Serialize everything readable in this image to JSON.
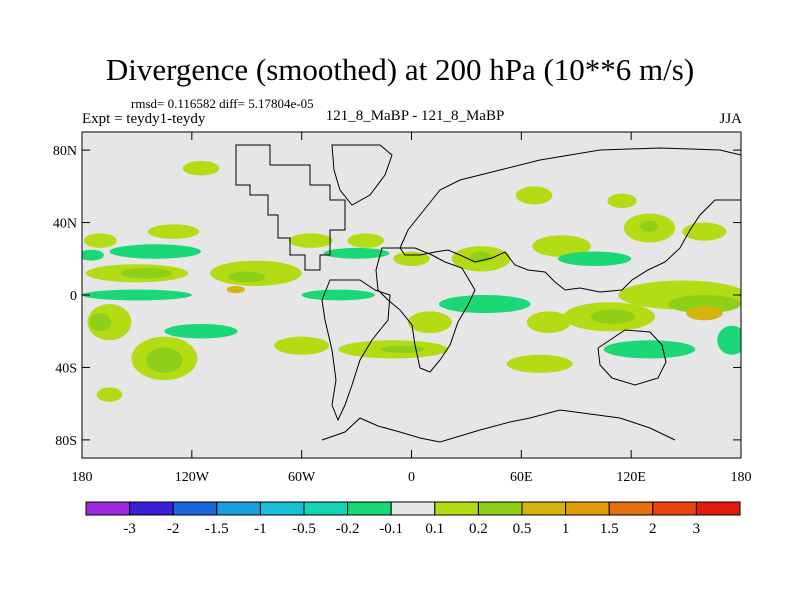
{
  "chart_data": {
    "type": "heatmap",
    "title": "Divergence (smoothed) at 200 hPa (10**6 m/s)",
    "stats_text": "rmsd= 0.116582 diff= 5.17804e-05",
    "left_label": "Expt = teydy1-teydy",
    "center_label": "121_8_MaBP - 121_8_MaBP",
    "right_label": "JJA",
    "xlim": [
      -180,
      180
    ],
    "ylim": [
      -90,
      90
    ],
    "x_ticks": [
      {
        "value": -180,
        "label": "180"
      },
      {
        "value": -120,
        "label": "120W"
      },
      {
        "value": -60,
        "label": "60W"
      },
      {
        "value": 0,
        "label": "0"
      },
      {
        "value": 60,
        "label": "60E"
      },
      {
        "value": 120,
        "label": "120E"
      },
      {
        "value": 180,
        "label": "180"
      }
    ],
    "y_ticks": [
      {
        "value": 80,
        "label": "80N"
      },
      {
        "value": 40,
        "label": "40N"
      },
      {
        "value": 0,
        "label": "0"
      },
      {
        "value": -40,
        "label": "40S"
      },
      {
        "value": -80,
        "label": "80S"
      }
    ],
    "colorbar": {
      "levels": [
        "-3",
        "-2",
        "-1.5",
        "-1",
        "-0.5",
        "-0.2",
        "-0.1",
        "0.1",
        "0.2",
        "0.5",
        "1",
        "1.5",
        "2",
        "3"
      ],
      "colors": [
        "#9b2bdc",
        "#3a1fd6",
        "#1a66dc",
        "#1a9edc",
        "#18bfd6",
        "#16d3b8",
        "#1ad878",
        "#e6e6e6",
        "#b4dc14",
        "#8ed018",
        "#d4b40e",
        "#e39a0a",
        "#e76e0c",
        "#e8440c",
        "#e51a0e"
      ]
    },
    "background_color": "#e6e6e6",
    "regions": [
      {
        "level": "0.1",
        "lon": -170,
        "lat": 30,
        "rx": 9,
        "ry": 4
      },
      {
        "level": "0.1",
        "lon": -130,
        "lat": 35,
        "rx": 14,
        "ry": 4
      },
      {
        "level": "-0.1",
        "lon": -175,
        "lat": 22,
        "rx": 7,
        "ry": 3
      },
      {
        "level": "0.1",
        "lon": -150,
        "lat": 12,
        "rx": 28,
        "ry": 5
      },
      {
        "level": "0.2",
        "lon": -145,
        "lat": 12,
        "rx": 14,
        "ry": 3
      },
      {
        "level": "-0.1",
        "lon": -140,
        "lat": 24,
        "rx": 25,
        "ry": 4
      },
      {
        "level": "0.1",
        "lon": -85,
        "lat": 12,
        "rx": 25,
        "ry": 7
      },
      {
        "level": "0.2",
        "lon": -90,
        "lat": 10,
        "rx": 10,
        "ry": 3
      },
      {
        "level": "0.5",
        "lon": -96,
        "lat": 3,
        "rx": 5,
        "ry": 2
      },
      {
        "level": "0.1",
        "lon": -55,
        "lat": 30,
        "rx": 12,
        "ry": 4
      },
      {
        "level": "0.1",
        "lon": -25,
        "lat": 30,
        "rx": 10,
        "ry": 4
      },
      {
        "level": "-0.1",
        "lon": -30,
        "lat": 23,
        "rx": 18,
        "ry": 3
      },
      {
        "level": "0.1",
        "lon": 0,
        "lat": 20,
        "rx": 10,
        "ry": 4
      },
      {
        "level": "0.1",
        "lon": 38,
        "lat": 20,
        "rx": 16,
        "ry": 7
      },
      {
        "level": "0.2",
        "lon": 38,
        "lat": 21,
        "rx": 6,
        "ry": 3
      },
      {
        "level": "0.1",
        "lon": 82,
        "lat": 27,
        "rx": 16,
        "ry": 6
      },
      {
        "level": "0.1",
        "lon": 130,
        "lat": 37,
        "rx": 14,
        "ry": 8
      },
      {
        "level": "0.2",
        "lon": 130,
        "lat": 38,
        "rx": 5,
        "ry": 3
      },
      {
        "level": "0.1",
        "lon": 160,
        "lat": 35,
        "rx": 12,
        "ry": 5
      },
      {
        "level": "0.1",
        "lon": 115,
        "lat": 52,
        "rx": 8,
        "ry": 4
      },
      {
        "level": "0.1",
        "lon": 67,
        "lat": 55,
        "rx": 10,
        "ry": 5
      },
      {
        "level": "0.1",
        "lon": -115,
        "lat": 70,
        "rx": 10,
        "ry": 4
      },
      {
        "level": "0.1",
        "lon": 148,
        "lat": 0,
        "rx": 35,
        "ry": 8
      },
      {
        "level": "0.2",
        "lon": 160,
        "lat": -5,
        "rx": 20,
        "ry": 5
      },
      {
        "level": "0.5",
        "lon": 160,
        "lat": -10,
        "rx": 10,
        "ry": 4
      },
      {
        "level": "0.1",
        "lon": 108,
        "lat": -12,
        "rx": 25,
        "ry": 8
      },
      {
        "level": "0.2",
        "lon": 110,
        "lat": -12,
        "rx": 12,
        "ry": 4
      },
      {
        "level": "0.1",
        "lon": 75,
        "lat": -15,
        "rx": 12,
        "ry": 6
      },
      {
        "level": "0.1",
        "lon": -165,
        "lat": -15,
        "rx": 12,
        "ry": 10
      },
      {
        "level": "0.2",
        "lon": -170,
        "lat": -15,
        "rx": 6,
        "ry": 5
      },
      {
        "level": "0.1",
        "lon": -135,
        "lat": -35,
        "rx": 18,
        "ry": 12
      },
      {
        "level": "0.2",
        "lon": -135,
        "lat": -36,
        "rx": 10,
        "ry": 7
      },
      {
        "level": "-0.1",
        "lon": -115,
        "lat": -20,
        "rx": 20,
        "ry": 4
      },
      {
        "level": "0.1",
        "lon": -60,
        "lat": -28,
        "rx": 15,
        "ry": 5
      },
      {
        "level": "0.1",
        "lon": -10,
        "lat": -30,
        "rx": 30,
        "ry": 5
      },
      {
        "level": "0.2",
        "lon": -5,
        "lat": -30,
        "rx": 12,
        "ry": 2
      },
      {
        "level": "0.1",
        "lon": 10,
        "lat": -15,
        "rx": 12,
        "ry": 6
      },
      {
        "level": "0.1",
        "lon": 70,
        "lat": -38,
        "rx": 18,
        "ry": 5
      },
      {
        "level": "-0.1",
        "lon": 40,
        "lat": -5,
        "rx": 25,
        "ry": 5
      },
      {
        "level": "0.1",
        "lon": -165,
        "lat": -55,
        "rx": 7,
        "ry": 4
      },
      {
        "level": "-0.1",
        "lon": -150,
        "lat": 0,
        "rx": 30,
        "ry": 3
      },
      {
        "level": "-0.1",
        "lon": -40,
        "lat": 0,
        "rx": 20,
        "ry": 3
      },
      {
        "level": "-0.1",
        "lon": 130,
        "lat": -30,
        "rx": 25,
        "ry": 5
      },
      {
        "level": "-0.1",
        "lon": 100,
        "lat": 20,
        "rx": 20,
        "ry": 4
      },
      {
        "level": "-0.1",
        "lon": 175,
        "lat": -25,
        "rx": 8,
        "ry": 8
      }
    ]
  }
}
